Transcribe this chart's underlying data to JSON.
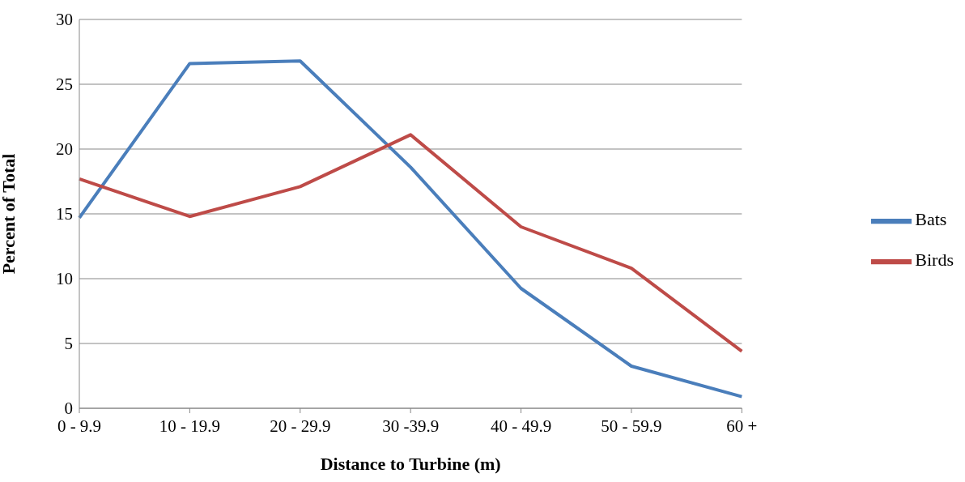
{
  "chart_data": {
    "type": "line",
    "xlabel": "Distance  to Turbine (m)",
    "ylabel": "Percent of Total",
    "categories": [
      "0 - 9.9",
      "10 - 19.9",
      "20 - 29.9",
      "30 -39.9",
      "40 - 49.9",
      "50 - 59.9",
      "60 +"
    ],
    "series": [
      {
        "name": "Bats",
        "color": "#4a7ebb",
        "values": [
          14.7,
          26.6,
          26.8,
          18.6,
          9.25,
          3.25,
          0.9
        ]
      },
      {
        "name": "Birds",
        "color": "#be4b48",
        "values": [
          17.7,
          14.8,
          17.1,
          21.1,
          14.0,
          10.8,
          4.4
        ]
      }
    ],
    "ylim": [
      0,
      30
    ],
    "yticks": [
      0,
      5,
      10,
      15,
      20,
      25,
      30
    ],
    "grid": "y",
    "legend": "right",
    "marker": "none",
    "line_style": "solid"
  }
}
